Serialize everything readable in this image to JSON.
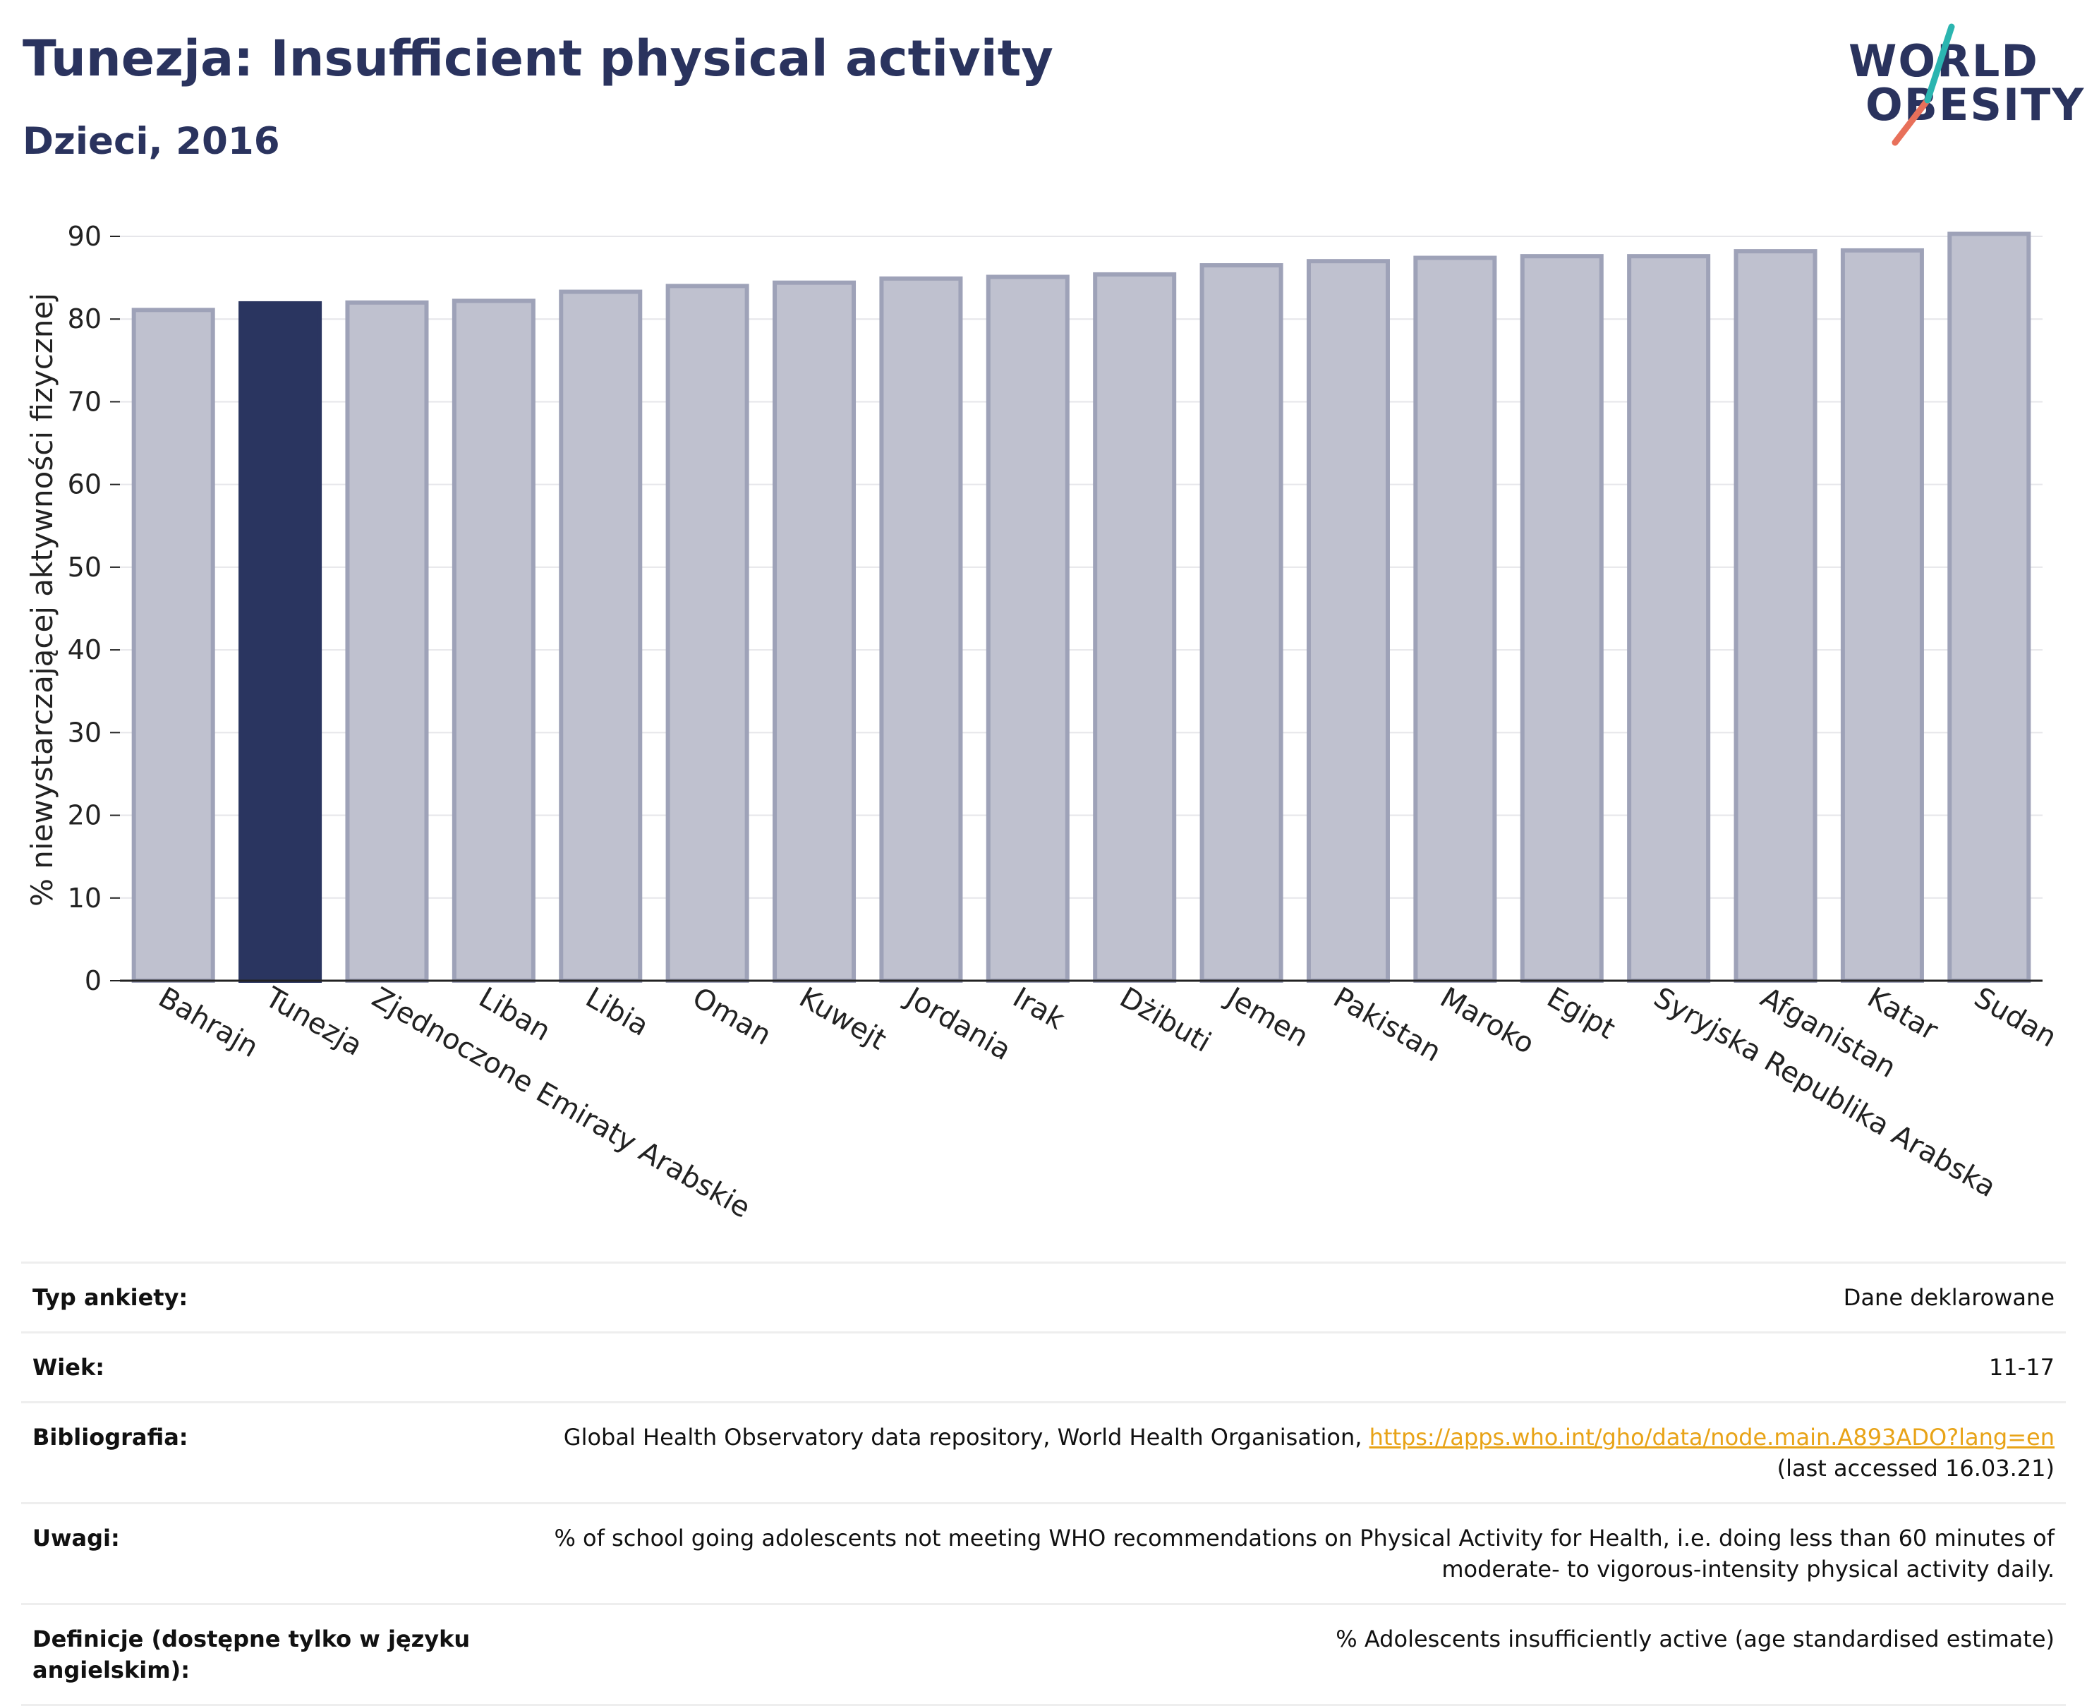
{
  "header": {
    "title": "Tunezja: Insufficient physical activity",
    "subtitle": "Dzieci, 2016"
  },
  "logo": {
    "line1": "WORLD",
    "line2": "OBESITY"
  },
  "colors": {
    "highlight": "#2a3560",
    "bar_fill": "#bfc1cf",
    "bar_stroke": "#9ea2b8",
    "logo_teal": "#2bb5b0",
    "logo_coral": "#e8705a"
  },
  "chart_data": {
    "type": "bar",
    "ylabel": "% niewystarczającej aktywności fizycznej",
    "ylim": [
      0,
      90
    ],
    "yticks": [
      0,
      10,
      20,
      30,
      40,
      50,
      60,
      70,
      80,
      90
    ],
    "grid": true,
    "highlight": "Tunezja",
    "categories": [
      "Bahrajn",
      "Tunezja",
      "Zjednoczone Emiraty Arabskie",
      "Liban",
      "Libia",
      "Oman",
      "Kuwejt",
      "Jordania",
      "Irak",
      "Dżibuti",
      "Jemen",
      "Pakistan",
      "Maroko",
      "Egipt",
      "Syryjska Republika Arabska",
      "Afganistan",
      "Katar",
      "Sudan"
    ],
    "values": [
      81.1,
      81.9,
      82.0,
      82.2,
      83.3,
      84.0,
      84.4,
      84.9,
      85.1,
      85.4,
      86.5,
      87.0,
      87.4,
      87.6,
      87.6,
      88.2,
      88.3,
      90.3
    ]
  },
  "meta": {
    "survey_type": {
      "label": "Typ ankiety:",
      "value": "Dane deklarowane"
    },
    "age": {
      "label": "Wiek:",
      "value": "11-17"
    },
    "bibliography": {
      "label": "Bibliografia:",
      "text": "Global Health Observatory data repository, World Health Organisation,",
      "link": "https://apps.who.int/gho/data/node.main.A893ADO?lang=en",
      "accessed": "(last accessed 16.03.21)"
    },
    "notes": {
      "label": "Uwagi:",
      "value": "% of school going adolescents not meeting WHO recommendations on Physical Activity for Health, i.e. doing less than 60 minutes of moderate- to vigorous-intensity physical activity daily."
    },
    "definitions": {
      "label": "Definicje (dostępne tylko w języku angielskim):",
      "value": "% Adolescents insufficiently active (age standardised estimate)"
    }
  }
}
